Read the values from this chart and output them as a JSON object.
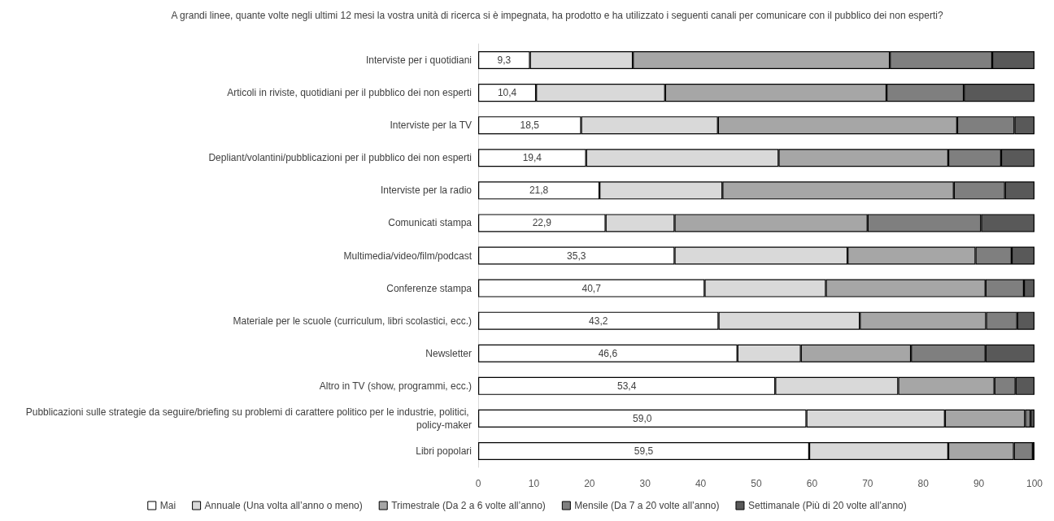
{
  "chart_data": {
    "type": "bar",
    "orientation": "horizontal",
    "stacked": true,
    "title": "A grandi linee, quante volte negli ultimi 12 mesi la vostra unità di ricerca si è impegnata, ha prodotto e ha utilizzato i seguenti canali per comunicare con il pubblico dei non esperti?",
    "categories": [
      "Interviste per i quotidiani",
      "Articoli in riviste, quotidiani per il pubblico dei non esperti",
      "Interviste per la TV",
      "Depliant/volantini/pubblicazioni per il pubblico dei non esperti",
      "Interviste per la radio",
      "Comunicati stampa",
      "Multimedia/video/film/podcast",
      "Conferenze stampa",
      "Materiale per le scuole (curriculum, libri scolastici, ecc.)",
      "Newsletter",
      "Altro in TV (show, programmi, ecc.)",
      "Pubblicazioni sulle strategie da seguire/briefing su problemi di carattere politico per le industrie, politici, policy-maker",
      "Libri popolari"
    ],
    "series": [
      {
        "name": "Mai",
        "color": "#ffffff",
        "values": [
          9.3,
          10.4,
          18.5,
          19.4,
          21.8,
          22.9,
          35.3,
          40.7,
          43.2,
          46.6,
          53.4,
          59.0,
          59.5
        ],
        "value_labels": [
          "9,3",
          "10,4",
          "18,5",
          "19,4",
          "21,8",
          "22,9",
          "35,3",
          "40,7",
          "43,2",
          "46,6",
          "53,4",
          "59,0",
          "59,5"
        ]
      },
      {
        "name": "Annuale (Una volta all’anno o meno)",
        "color": "#d9d9d9",
        "values": [
          18.5,
          23.2,
          24.6,
          34.6,
          22.1,
          12.4,
          31.1,
          21.8,
          25.4,
          11.4,
          22.1,
          24.9,
          25.0
        ]
      },
      {
        "name": "Trimestrale (Da 2 a 6 volte all’anno)",
        "color": "#a6a6a6",
        "values": [
          46.2,
          39.8,
          43.0,
          30.5,
          41.6,
          34.7,
          23.0,
          28.7,
          22.7,
          19.8,
          17.3,
          14.4,
          11.8
        ]
      },
      {
        "name": "Mensile (Da 7 a 20 volte all’anno)",
        "color": "#7f7f7f",
        "values": [
          18.4,
          13.9,
          10.3,
          9.5,
          9.2,
          20.4,
          6.5,
          6.9,
          5.6,
          13.4,
          3.8,
          1.0,
          3.4
        ]
      },
      {
        "name": "Settimanale (Più di 20 volte all’anno)",
        "color": "#595959",
        "values": [
          7.6,
          12.7,
          3.6,
          6.0,
          5.3,
          9.6,
          4.1,
          1.9,
          3.1,
          8.8,
          3.4,
          0.7,
          0.3
        ]
      }
    ],
    "xlim": [
      0,
      100
    ],
    "xticks": [
      0,
      10,
      20,
      30,
      40,
      50,
      60,
      70,
      80,
      90,
      100
    ],
    "grid": false,
    "legend": "bottom"
  }
}
